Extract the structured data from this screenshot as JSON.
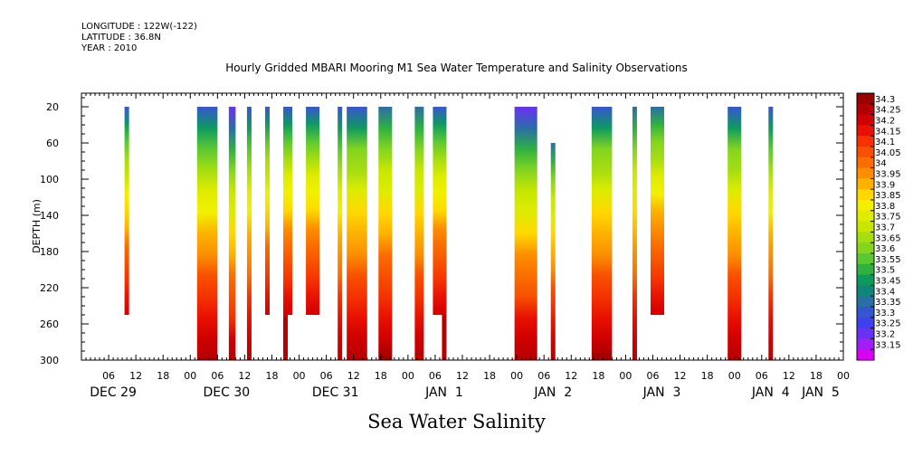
{
  "header": {
    "longitude": "LONGITUDE : 122W(-122)",
    "latitude": "LATITUDE : 36.8N",
    "year": "YEAR : 2010"
  },
  "title": "Hourly Gridded MBARI Mooring M1 Sea Water Temperature and Salinity Observations",
  "bottom_title": "Sea Water Salinity",
  "chart_data": {
    "type": "heatmap",
    "ylabel": "DEPTH (m)",
    "ylim": [
      300,
      5
    ],
    "yticks": [
      20,
      60,
      100,
      140,
      180,
      220,
      260,
      300
    ],
    "x_hour_range": [
      0,
      168
    ],
    "hour_labels": [
      "06",
      "12",
      "18",
      "00",
      "06",
      "12",
      "18",
      "00",
      "06",
      "12",
      "18",
      "00",
      "06",
      "12",
      "18",
      "00",
      "06",
      "12",
      "18",
      "00",
      "06",
      "12",
      "18",
      "00",
      "06",
      "12",
      "18",
      "00"
    ],
    "hour_label_positions": [
      6,
      12,
      18,
      24,
      30,
      36,
      42,
      48,
      54,
      60,
      66,
      72,
      78,
      84,
      90,
      96,
      102,
      108,
      114,
      120,
      126,
      132,
      138,
      144,
      150,
      156,
      162,
      168
    ],
    "day_labels": [
      {
        "text": "DEC 29",
        "hour": 7
      },
      {
        "text": "DEC 30",
        "hour": 32
      },
      {
        "text": "DEC 31",
        "hour": 56
      },
      {
        "text": "JAN  1",
        "hour": 80
      },
      {
        "text": "JAN  2",
        "hour": 104
      },
      {
        "text": "JAN  3",
        "hour": 128
      },
      {
        "text": "JAN  4",
        "hour": 152
      },
      {
        "text": "JAN  5",
        "hour": 163
      }
    ],
    "colorbar_levels": [
      "34.3",
      "34.25",
      "34.2",
      "34.15",
      "34.1",
      "34.05",
      "34",
      "33.95",
      "33.9",
      "33.85",
      "33.8",
      "33.75",
      "33.7",
      "33.65",
      "33.6",
      "33.55",
      "33.5",
      "33.45",
      "33.4",
      "33.35",
      "33.3",
      "33.25",
      "33.2",
      "33.15"
    ],
    "colorbar_colors": [
      "#9b0000",
      "#b40000",
      "#d00000",
      "#e81000",
      "#f53200",
      "#f85000",
      "#fa6e00",
      "#fc8f00",
      "#fdb200",
      "#ffd800",
      "#f2f000",
      "#dfeb00",
      "#c8e600",
      "#a6dd10",
      "#84d420",
      "#5cc830",
      "#2fb040",
      "#0e9a5e",
      "#12857a",
      "#2a6ea6",
      "#3556d0",
      "#4040ee",
      "#6a30f4",
      "#a21ef6",
      "#d800f5"
    ],
    "columns": [
      {
        "start": 9.5,
        "end": 10.5,
        "top": 20,
        "bottom": 250,
        "top_val": 33.3,
        "bottom_val": 34.2
      },
      {
        "start": 25.5,
        "end": 30,
        "top": 20,
        "bottom": 300,
        "top_val": 33.28,
        "bottom_val": 34.27
      },
      {
        "start": 32.5,
        "end": 34,
        "top": 20,
        "bottom": 300,
        "top_val": 33.18,
        "bottom_val": 34.25
      },
      {
        "start": 36.5,
        "end": 37.5,
        "top": 20,
        "bottom": 300,
        "top_val": 33.3,
        "bottom_val": 34.25
      },
      {
        "start": 40.5,
        "end": 41.5,
        "top": 20,
        "bottom": 250,
        "top_val": 33.3,
        "bottom_val": 34.2
      },
      {
        "start": 44.5,
        "end": 46.5,
        "top": 20,
        "bottom": 250,
        "top_val": 33.3,
        "bottom_val": 34.22
      },
      {
        "start": 44.5,
        "end": 45.5,
        "top": 250,
        "bottom": 300,
        "top_val": 34.22,
        "bottom_val": 34.27
      },
      {
        "start": 49.5,
        "end": 52.5,
        "top": 20,
        "bottom": 250,
        "top_val": 33.3,
        "bottom_val": 34.22
      },
      {
        "start": 56.5,
        "end": 57.5,
        "top": 20,
        "bottom": 300,
        "top_val": 33.3,
        "bottom_val": 34.25
      },
      {
        "start": 58.5,
        "end": 63,
        "top": 20,
        "bottom": 300,
        "top_val": 33.3,
        "bottom_val": 34.27
      },
      {
        "start": 65.5,
        "end": 68.5,
        "top": 20,
        "bottom": 300,
        "top_val": 33.33,
        "bottom_val": 34.28
      },
      {
        "start": 73.5,
        "end": 75.5,
        "top": 20,
        "bottom": 300,
        "top_val": 33.33,
        "bottom_val": 34.27
      },
      {
        "start": 77.5,
        "end": 80.5,
        "top": 20,
        "bottom": 250,
        "top_val": 33.3,
        "bottom_val": 34.22
      },
      {
        "start": 79.5,
        "end": 80.5,
        "top": 250,
        "bottom": 300,
        "top_val": 34.22,
        "bottom_val": 34.27
      },
      {
        "start": 95.5,
        "end": 100.5,
        "top": 20,
        "bottom": 300,
        "top_val": 33.18,
        "bottom_val": 34.27
      },
      {
        "start": 103.5,
        "end": 104.5,
        "top": 60,
        "bottom": 300,
        "top_val": 33.35,
        "bottom_val": 34.25
      },
      {
        "start": 112.5,
        "end": 117,
        "top": 20,
        "bottom": 300,
        "top_val": 33.3,
        "bottom_val": 34.28
      },
      {
        "start": 121.5,
        "end": 122.5,
        "top": 20,
        "bottom": 300,
        "top_val": 33.33,
        "bottom_val": 34.25
      },
      {
        "start": 125.5,
        "end": 128.5,
        "top": 20,
        "bottom": 250,
        "top_val": 33.33,
        "bottom_val": 34.22
      },
      {
        "start": 142.5,
        "end": 145.5,
        "top": 20,
        "bottom": 300,
        "top_val": 33.3,
        "bottom_val": 34.27
      },
      {
        "start": 151.5,
        "end": 152.5,
        "top": 20,
        "bottom": 300,
        "top_val": 33.3,
        "bottom_val": 34.25
      }
    ]
  }
}
